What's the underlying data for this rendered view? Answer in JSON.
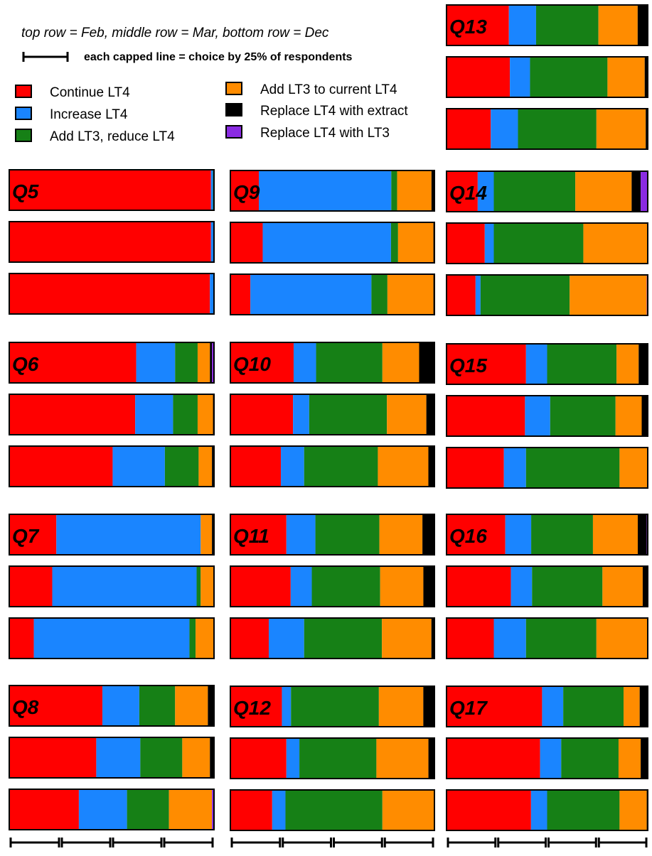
{
  "notes": {
    "rows": "top row = Feb, middle row = Mar, bottom row = Dec",
    "scale": "each capped line = choice by 25% of respondents"
  },
  "colors": {
    "continue": "#ff0000",
    "increase": "#1a85ff",
    "addreduce": "#168016",
    "addcurrent": "#ff8c00",
    "extract": "#000000",
    "lt3": "#8a2be2"
  },
  "chart_data": {
    "type": "bar",
    "stacked": true,
    "orientation": "horizontal",
    "rows": [
      "Feb",
      "Mar",
      "Dec"
    ],
    "xlim": [
      0,
      100
    ],
    "units": "% of respondents",
    "categories": [
      "Continue LT4",
      "Increase LT4",
      "Add LT3, reduce LT4",
      "Add LT3 to current LT4",
      "Replace LT4 with extract",
      "Replace LT4 with LT3"
    ],
    "legend": [
      {
        "key": "continue",
        "label": "Continue LT4"
      },
      {
        "key": "increase",
        "label": "Increase LT4"
      },
      {
        "key": "addreduce",
        "label": "Add LT3, reduce LT4"
      },
      {
        "key": "addcurrent",
        "label": "Add LT3 to current LT4"
      },
      {
        "key": "extract",
        "label": "Replace LT4 with extract"
      },
      {
        "key": "lt3",
        "label": "Replace LT4 with LT3"
      }
    ],
    "questions": [
      {
        "label": "Q5",
        "rows": [
          [
            98.5,
            1.0,
            0.5,
            0,
            0,
            0
          ],
          [
            98.5,
            1.5,
            0,
            0,
            0,
            0
          ],
          [
            98.0,
            2.0,
            0,
            0,
            0,
            0
          ]
        ]
      },
      {
        "label": "Q6",
        "rows": [
          [
            62,
            19,
            11,
            6,
            1,
            1
          ],
          [
            61.5,
            18.5,
            12,
            7.5,
            0.5,
            0
          ],
          [
            50.5,
            25.5,
            16.5,
            6.5,
            1,
            0
          ]
        ]
      },
      {
        "label": "Q7",
        "rows": [
          [
            23,
            70.5,
            0,
            5.5,
            1,
            0
          ],
          [
            21,
            70.5,
            2,
            6.5,
            0,
            0
          ],
          [
            12,
            76,
            3,
            9,
            0,
            0
          ]
        ]
      },
      {
        "label": "Q8",
        "rows": [
          [
            45.5,
            18,
            17.5,
            16,
            3,
            0
          ],
          [
            42.5,
            21.5,
            20.5,
            13.5,
            2,
            0
          ],
          [
            34,
            23.5,
            20.5,
            21,
            0,
            1
          ]
        ]
      },
      {
        "label": "Q9",
        "rows": [
          [
            14.5,
            67.5,
            3,
            17.5,
            1.5,
            0
          ],
          [
            16,
            63.5,
            3.5,
            17.5,
            0.5,
            0
          ],
          [
            10,
            60.5,
            8,
            23,
            0.5,
            0
          ]
        ]
      },
      {
        "label": "Q10",
        "rows": [
          [
            31,
            11,
            32.5,
            18,
            7.5,
            0
          ],
          [
            31,
            8,
            38.5,
            19.5,
            4,
            0
          ],
          [
            25,
            11.5,
            36.5,
            25,
            3,
            0
          ]
        ]
      },
      {
        "label": "Q11",
        "rows": [
          [
            28,
            14.5,
            32,
            21.5,
            6,
            0
          ],
          [
            30,
            10.5,
            34,
            21.5,
            5.5,
            0
          ],
          [
            19,
            17.5,
            38.5,
            24.5,
            1.5,
            0
          ]
        ]
      },
      {
        "label": "Q12",
        "rows": [
          [
            25.5,
            4.5,
            43.5,
            22,
            5.5,
            0
          ],
          [
            28,
            6.5,
            38.5,
            26,
            3,
            0
          ],
          [
            20.5,
            6.5,
            47.5,
            25.5,
            0,
            0
          ]
        ]
      },
      {
        "label": "Q13",
        "rows": [
          [
            31,
            13.5,
            31,
            19.5,
            5,
            0
          ],
          [
            31.5,
            10,
            38.5,
            18.5,
            1.5,
            0
          ],
          [
            22,
            13.5,
            39,
            24.5,
            1,
            0
          ]
        ]
      },
      {
        "label": "Q14",
        "rows": [
          [
            15.5,
            8,
            40.5,
            28,
            4.5,
            3.5
          ],
          [
            19,
            4.5,
            44.5,
            32,
            0,
            0
          ],
          [
            14.5,
            2.5,
            44.5,
            38.5,
            0,
            0.5
          ]
        ]
      },
      {
        "label": "Q15",
        "rows": [
          [
            39.5,
            10.5,
            34.5,
            11,
            4.5,
            0
          ],
          [
            39,
            12.5,
            32.5,
            13,
            3,
            0
          ],
          [
            28.5,
            11,
            46.5,
            14,
            0,
            0
          ]
        ]
      },
      {
        "label": "Q16",
        "rows": [
          [
            29.5,
            13,
            31,
            22.5,
            4.5,
            0.5
          ],
          [
            32,
            10.5,
            35,
            20,
            2.5,
            0
          ],
          [
            23.5,
            16,
            35,
            25.5,
            0,
            0
          ]
        ]
      },
      {
        "label": "Q17",
        "rows": [
          [
            47.5,
            10.5,
            30,
            8,
            4,
            0
          ],
          [
            46.5,
            10.5,
            28.5,
            11,
            3.5,
            0
          ],
          [
            42,
            8,
            36,
            13.5,
            0.5,
            0
          ]
        ]
      }
    ]
  }
}
